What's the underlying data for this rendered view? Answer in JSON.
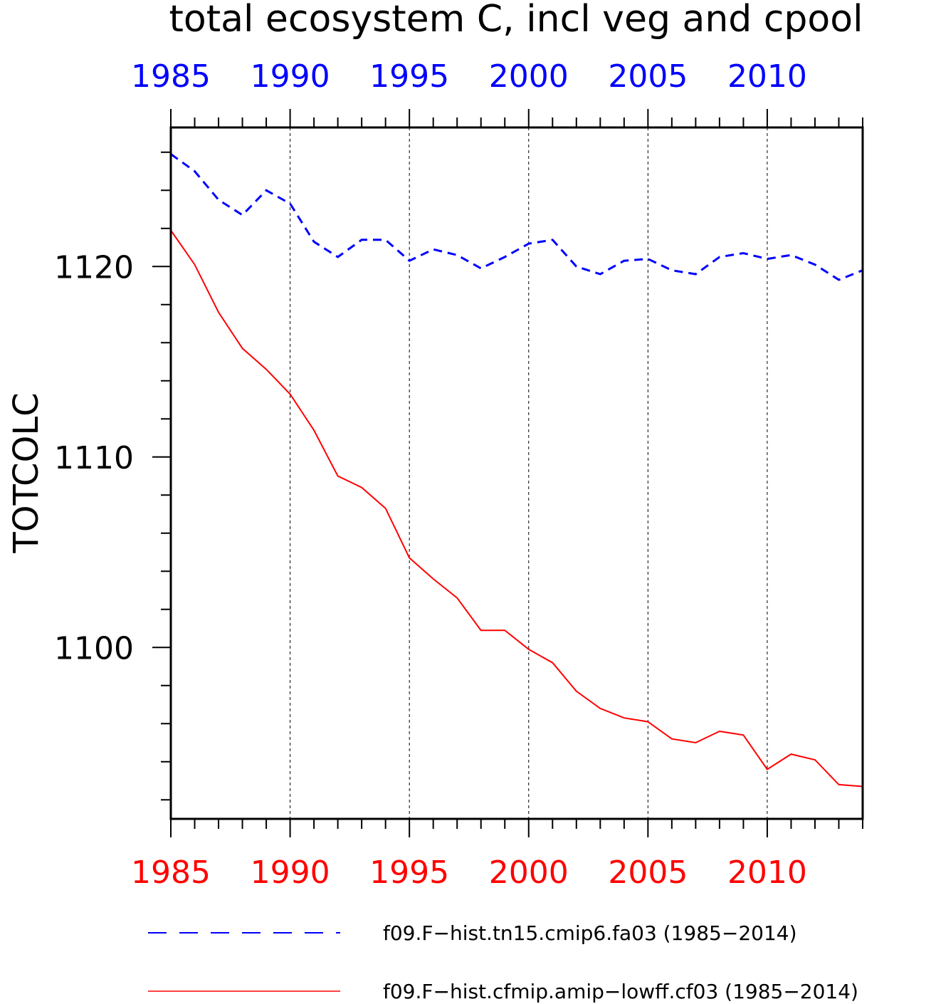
{
  "chart_data": {
    "type": "line",
    "title": "total ecosystem C, incl veg and cpool",
    "ylabel": "TOTCOLC",
    "xlabel": "",
    "xlim": [
      1985,
      2014
    ],
    "ylim": [
      1091,
      1127.3
    ],
    "grid": "vertical dashed at x ticks",
    "x_ticks": [
      1985,
      1990,
      1995,
      2000,
      2005,
      2010
    ],
    "x_tick_labels": [
      "1985",
      "1990",
      "1995",
      "2000",
      "2005",
      "2010"
    ],
    "y_ticks": [
      1100,
      1110,
      1120
    ],
    "y_tick_labels": [
      "1100",
      "1110",
      "1120"
    ],
    "top_axis_color": "#0000ff",
    "bottom_axis_color": "#ff0000",
    "x": [
      1985,
      1986,
      1987,
      1988,
      1989,
      1990,
      1991,
      1992,
      1993,
      1994,
      1995,
      1996,
      1997,
      1998,
      1999,
      2000,
      2001,
      2002,
      2003,
      2004,
      2005,
      2006,
      2007,
      2008,
      2009,
      2010,
      2011,
      2012,
      2013,
      2014
    ],
    "series": [
      {
        "name": "f09.F−hist.tn15.cmip6.fa03 (1985−2014)",
        "color": "#0000ff",
        "style": "dashed",
        "values": [
          1125.9,
          1125.0,
          1123.5,
          1122.7,
          1124.0,
          1123.3,
          1121.3,
          1120.5,
          1121.4,
          1121.4,
          1120.3,
          1120.9,
          1120.6,
          1119.9,
          1120.5,
          1121.2,
          1121.4,
          1120.0,
          1119.6,
          1120.3,
          1120.4,
          1119.8,
          1119.6,
          1120.5,
          1120.7,
          1120.4,
          1120.6,
          1120.1,
          1119.3,
          1119.8
        ]
      },
      {
        "name": "f09.F−hist.cfmip.amip−lowff.cf03 (1985−2014)",
        "color": "#ff0000",
        "style": "solid",
        "values": [
          1121.9,
          1120.1,
          1117.6,
          1115.7,
          1114.6,
          1113.3,
          1111.4,
          1109.0,
          1108.4,
          1107.3,
          1104.7,
          1103.6,
          1102.6,
          1100.9,
          1100.9,
          1099.9,
          1099.2,
          1097.7,
          1096.8,
          1096.3,
          1096.1,
          1095.2,
          1095.0,
          1095.6,
          1095.4,
          1093.6,
          1094.4,
          1094.1,
          1092.8,
          1092.7
        ]
      }
    ]
  }
}
